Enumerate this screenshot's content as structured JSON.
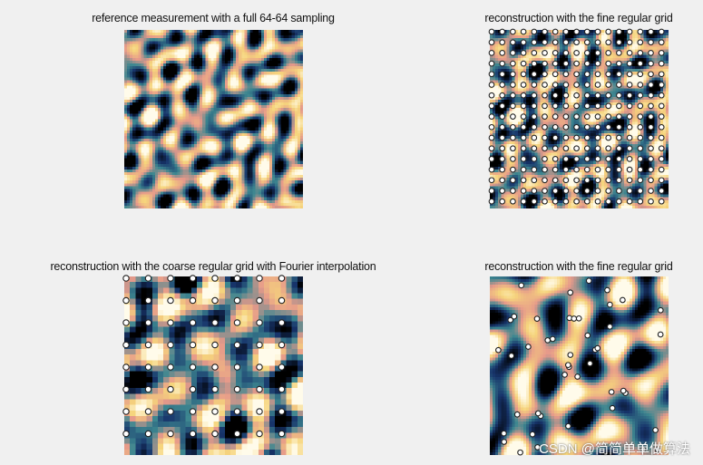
{
  "watermark": "CSDN @简简单单做算法",
  "colormap": [
    "#000000",
    "#17346b",
    "#3d8790",
    "#e6998a",
    "#f6d57c",
    "#fffbea"
  ],
  "chart_data": [
    {
      "type": "heatmap",
      "title": "reference measurement with a full 64-64 sampling",
      "resolution": [
        64,
        64
      ],
      "sampling": "none"
    },
    {
      "type": "heatmap",
      "title": "reconstruction with the fine regular grid",
      "resolution": [
        64,
        64
      ],
      "sampling": "regular",
      "sample_grid": [
        17,
        17
      ]
    },
    {
      "type": "heatmap",
      "title": "reconstruction with the coarse regular grid with Fourier interpolation",
      "resolution": [
        32,
        32
      ],
      "sampling": "regular",
      "sample_grid": [
        8,
        8
      ]
    },
    {
      "type": "heatmap",
      "title": "reconstruction with the fine regular grid",
      "resolution": [
        64,
        64
      ],
      "sampling": "random",
      "sample_count": 45
    }
  ]
}
